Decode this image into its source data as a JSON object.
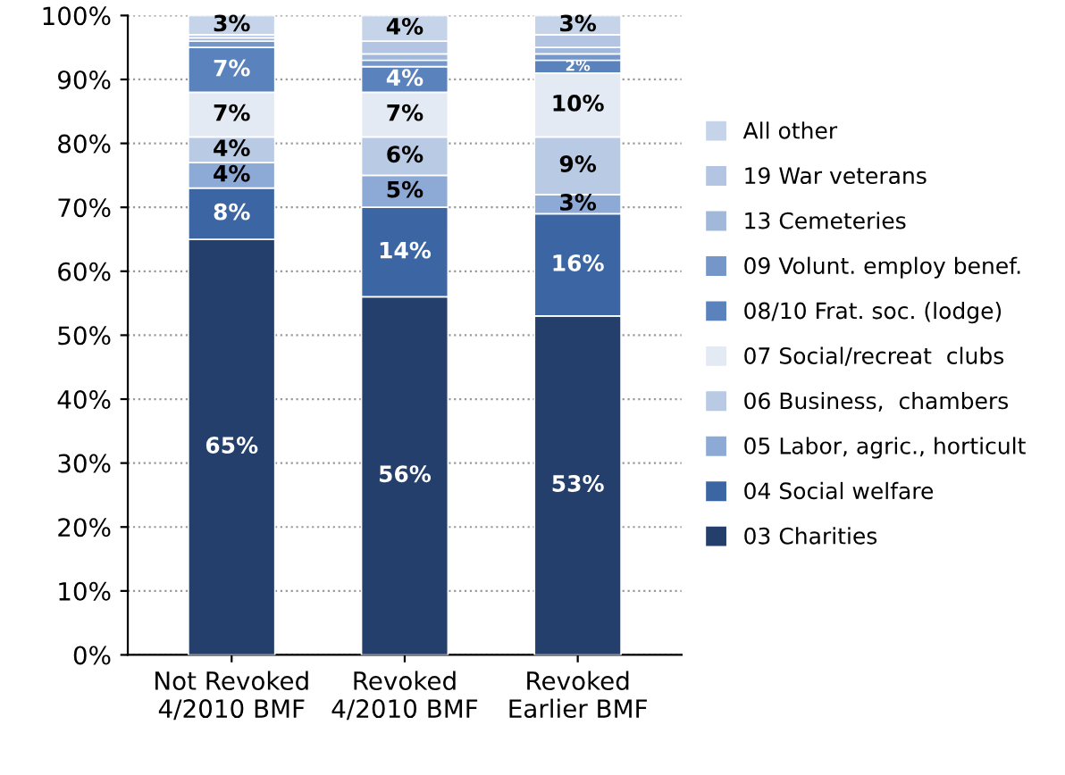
{
  "chart_data": {
    "type": "bar",
    "stacked": true,
    "categories": [
      "Not Revoked\n4/2010 BMF",
      "Revoked\n4/2010 BMF",
      "Revoked\nEarlier BMF"
    ],
    "series": [
      {
        "name": "03 Charities",
        "color": "#243f6b",
        "values": [
          65,
          56,
          53
        ],
        "value_labels": [
          "65%",
          "56%",
          "53%"
        ]
      },
      {
        "name": "04 Social welfare",
        "color": "#3c66a3",
        "values": [
          8,
          14,
          16
        ],
        "value_labels": [
          "8%",
          "14%",
          "16%"
        ]
      },
      {
        "name": "05 Labor, agric., horticult",
        "color": "#8daad6",
        "values": [
          4,
          5,
          3
        ],
        "value_labels": [
          "4%",
          "5%",
          "3%"
        ]
      },
      {
        "name": "06 Business,  chambers",
        "color": "#b9cae5",
        "values": [
          4,
          6,
          9
        ],
        "value_labels": [
          "4%",
          "6%",
          "9%"
        ]
      },
      {
        "name": "07 Social/recreat  clubs",
        "color": "#e4eaf4",
        "values": [
          7,
          7,
          10
        ],
        "value_labels": [
          "7%",
          "7%",
          "10%"
        ]
      },
      {
        "name": "08/10 Frat. soc. (lodge)",
        "color": "#5a82bd",
        "values": [
          7,
          4,
          2
        ],
        "value_labels": [
          "7%",
          "4%",
          "2%"
        ]
      },
      {
        "name": "09 Volunt. employ benef.",
        "color": "#7596c9",
        "values": [
          1,
          1,
          1
        ],
        "value_labels": [
          null,
          null,
          null
        ]
      },
      {
        "name": "13 Cemeteries",
        "color": "#a2b8da",
        "values": [
          0.5,
          1,
          1
        ],
        "value_labels": [
          null,
          null,
          null
        ]
      },
      {
        "name": "19 War veterans",
        "color": "#b3c5e2",
        "values": [
          0.5,
          2,
          2
        ],
        "value_labels": [
          null,
          null,
          null
        ]
      },
      {
        "name": "All other",
        "color": "#c6d4ea",
        "values": [
          3,
          4,
          3
        ],
        "value_labels": [
          "3%",
          "4%",
          "3%"
        ]
      }
    ],
    "ylim": [
      0,
      100
    ],
    "yticks": [
      {
        "value": 0,
        "label": "0%"
      },
      {
        "value": 10,
        "label": "10%"
      },
      {
        "value": 20,
        "label": "20%"
      },
      {
        "value": 30,
        "label": "30%"
      },
      {
        "value": 40,
        "label": "40%"
      },
      {
        "value": 50,
        "label": "50%"
      },
      {
        "value": 60,
        "label": "60%"
      },
      {
        "value": 70,
        "label": "70%"
      },
      {
        "value": 80,
        "label": "80%"
      },
      {
        "value": 90,
        "label": "90%"
      },
      {
        "value": 100,
        "label": "100%"
      }
    ],
    "grid": "y",
    "legend": "right"
  }
}
